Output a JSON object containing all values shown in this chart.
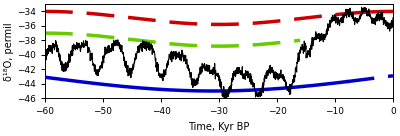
{
  "xlim": [
    -60,
    0
  ],
  "ylim": [
    -46,
    -33
  ],
  "yticks": [
    -46,
    -44,
    -42,
    -40,
    -38,
    -36,
    -34
  ],
  "xticks": [
    -60,
    -50,
    -40,
    -30,
    -20,
    -10,
    0
  ],
  "xlabel": "Time, Kyr BP",
  "ylabel": "δ¹⁸O, permil",
  "blue_line_color": "#0000cc",
  "red_dashed_color": "#cc0000",
  "green_dashed_color": "#66cc00",
  "black_line_color": "#000000",
  "background_color": "#ffffff",
  "blue_line_lw": 2.5,
  "red_dashed_lw": 2.5,
  "green_dashed_lw": 2.5,
  "black_line_lw": 0.8
}
